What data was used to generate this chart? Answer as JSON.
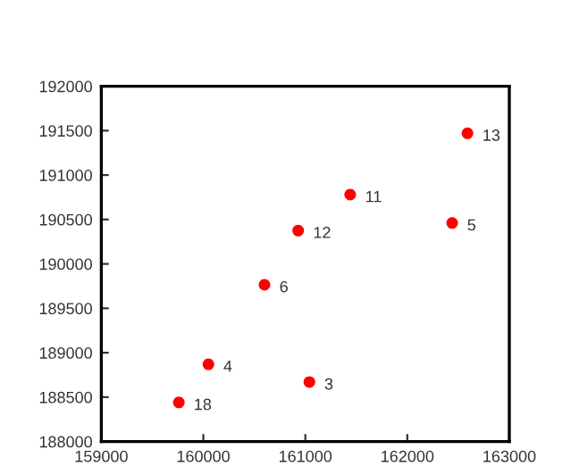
{
  "chart_data": {
    "type": "scatter",
    "x": [
      162590,
      161440,
      160930,
      162440,
      160600,
      160050,
      161040,
      159760
    ],
    "values": [
      191470,
      190780,
      190375,
      190460,
      189765,
      188870,
      188670,
      188440
    ],
    "color": "#ff0000",
    "marker": "circle",
    "grid": false,
    "legend": false,
    "xlim": [
      159000,
      163000
    ],
    "xticks": [
      159000,
      160000,
      161000,
      162000,
      163000
    ],
    "ylim": [
      188000,
      192000
    ],
    "yticks": [
      188000,
      188500,
      189000,
      189500,
      190000,
      190500,
      191000,
      191500,
      192000
    ],
    "annotations": [
      {
        "text": "13",
        "x": 162590,
        "y": 191470
      },
      {
        "text": "11",
        "x": 161440,
        "y": 190780
      },
      {
        "text": "12",
        "x": 160930,
        "y": 190375
      },
      {
        "text": "5",
        "x": 162440,
        "y": 190460
      },
      {
        "text": "6",
        "x": 160600,
        "y": 189765
      },
      {
        "text": "4",
        "x": 160050,
        "y": 188870
      },
      {
        "text": "3",
        "x": 161040,
        "y": 188670
      },
      {
        "text": "18",
        "x": 159760,
        "y": 188440
      }
    ]
  }
}
